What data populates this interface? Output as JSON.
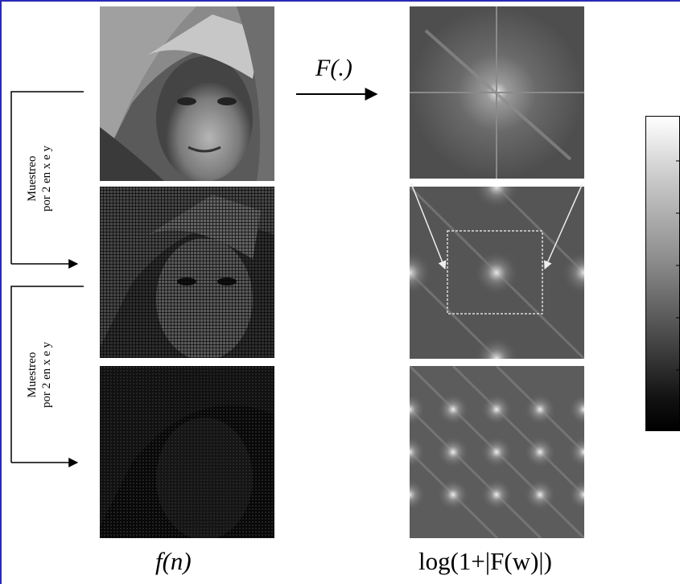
{
  "figure": {
    "left_labels": [
      "Muestreo\npor 2 en x e y",
      "Muestreo\npor 2 en x e y"
    ],
    "operator": "F(.)",
    "caption_left": "f(n)",
    "caption_right": "log(1+|F(w)|)"
  },
  "panels": {
    "images": [
      "lena-original",
      "lena-subsampled-2",
      "lena-subsampled-4"
    ],
    "spectra": [
      "spectrum-original",
      "spectrum-subsampled-2",
      "spectrum-subsampled-4"
    ]
  },
  "colorbar": {
    "colormap": "gray",
    "orientation": "vertical",
    "tick_labels_clipped": true
  },
  "colors": {
    "frame_border": "#2a2ab8",
    "zoom_box": "#dddddd"
  }
}
